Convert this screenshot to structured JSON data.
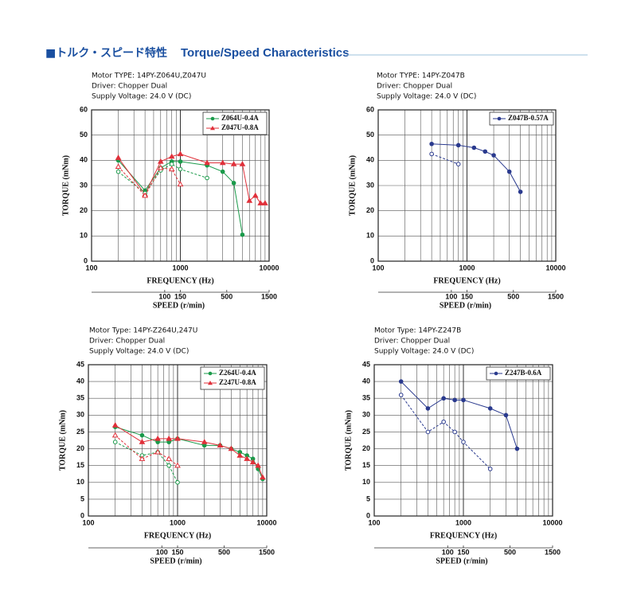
{
  "header": {
    "title_jp": "■トルク・スピード特性",
    "title_en": "Torque/Speed Characteristics"
  },
  "chart_data": [
    {
      "type": "line",
      "info": [
        "Motor TYPE: 14PY-Z064U,Z047U",
        "Driver: Chopper Dual",
        "Supply Voltage: 24.0 V (DC)"
      ],
      "xlabel": "FREQUENCY (Hz)",
      "ylabel": "TORQUE (mNm)",
      "x2label": "SPEED (r/min)",
      "xscale": "log",
      "x2scale": "log",
      "xlim": [
        100,
        10000
      ],
      "xticks": [
        100,
        1000,
        10000
      ],
      "x2lim": [
        15,
        1500
      ],
      "x2ticks": [
        100,
        150,
        500,
        1500
      ],
      "ylim": [
        0,
        60
      ],
      "yticks": [
        0,
        10,
        20,
        30,
        40,
        50,
        60
      ],
      "grid": true,
      "legend": "upper right",
      "series": [
        {
          "name": "Z064U-0.4A",
          "color": "#1a9a4a",
          "marker": "circle",
          "x": [
            200,
            400,
            600,
            800,
            1000,
            2000,
            3000,
            4000,
            5000
          ],
          "values": [
            40,
            28,
            37,
            39.5,
            39.5,
            38,
            35.5,
            31,
            10.5
          ]
        },
        {
          "name": "Z047U-0.8A",
          "color": "#e0303a",
          "marker": "triangle",
          "x": [
            200,
            400,
            600,
            800,
            1000,
            2000,
            3000,
            4000,
            5000,
            6000,
            7000,
            8000,
            9000
          ],
          "values": [
            41,
            26.5,
            39.5,
            41.5,
            42.5,
            39,
            39,
            38.5,
            38.5,
            24,
            26,
            23,
            23
          ]
        },
        {
          "color": "#1a9a4a",
          "marker": "circle",
          "dashed": true,
          "x": [
            200,
            400,
            600,
            800,
            1000,
            2000
          ],
          "values": [
            35.5,
            27,
            36,
            38.5,
            36.5,
            33
          ]
        },
        {
          "color": "#e0303a",
          "marker": "triangle",
          "dashed": true,
          "x": [
            200,
            400,
            600,
            800,
            1000
          ],
          "values": [
            37.5,
            26,
            37,
            36.5,
            30.5
          ]
        }
      ]
    },
    {
      "type": "line",
      "info": [
        "Motor TYPE: 14PY-Z047B",
        "Driver: Chopper Dual",
        "Supply Voltage: 24.0 V (DC)"
      ],
      "xlabel": "FREQUENCY (Hz)",
      "ylabel": "TORQUE (mNm)",
      "x2label": "SPEED (r/min)",
      "xscale": "log",
      "x2scale": "log",
      "xlim": [
        100,
        10000
      ],
      "xticks": [
        100,
        1000,
        10000
      ],
      "x2lim": [
        15,
        1500
      ],
      "x2ticks": [
        100,
        150,
        500,
        1500
      ],
      "ylim": [
        0,
        60
      ],
      "yticks": [
        0,
        10,
        20,
        30,
        40,
        50,
        60
      ],
      "grid": true,
      "legend": "upper right",
      "series": [
        {
          "name": "Z047B-0.57A",
          "color": "#2a3a8e",
          "marker": "circle",
          "x": [
            400,
            800,
            1200,
            1600,
            2000,
            3000,
            4000
          ],
          "values": [
            46.5,
            46,
            45,
            43.5,
            42,
            35.5,
            27.5
          ]
        },
        {
          "color": "#2a3a8e",
          "marker": "circle",
          "dashed": true,
          "x": [
            400,
            800
          ],
          "values": [
            42.5,
            38.5
          ]
        }
      ]
    },
    {
      "type": "line",
      "info": [
        "Motor Type: 14PY-Z264U,247U",
        "Driver: Chopper Dual",
        "Supply Voltage: 24.0 V (DC)"
      ],
      "xlabel": "FREQUENCY (Hz)",
      "ylabel": "TORQUE (mNm)",
      "x2label": "SPEED (r/min)",
      "xscale": "log",
      "x2scale": "log",
      "xlim": [
        100,
        10000
      ],
      "xticks": [
        100,
        1000,
        10000
      ],
      "x2lim": [
        15,
        1500
      ],
      "x2ticks": [
        100,
        150,
        500,
        1500
      ],
      "ylim": [
        0,
        45
      ],
      "yticks": [
        0,
        5,
        10,
        15,
        20,
        25,
        30,
        35,
        40,
        45
      ],
      "grid": true,
      "legend": "upper right",
      "series": [
        {
          "name": "Z264U-0.4A",
          "color": "#1a9a4a",
          "marker": "circle",
          "x": [
            200,
            400,
            600,
            800,
            1000,
            2000,
            3000,
            4000,
            5000,
            6000,
            7000,
            8000,
            9000
          ],
          "values": [
            26.5,
            24,
            22,
            22,
            23,
            21,
            21,
            20,
            19,
            18,
            17,
            14,
            11
          ]
        },
        {
          "name": "Z247U-0.8A",
          "color": "#e0303a",
          "marker": "triangle",
          "x": [
            200,
            400,
            600,
            800,
            1000,
            2000,
            3000,
            4000,
            5000,
            6000,
            7000,
            8000,
            9000
          ],
          "values": [
            27,
            22,
            23,
            23,
            23,
            22,
            21,
            20,
            18,
            17,
            16,
            15,
            11.5
          ]
        },
        {
          "color": "#1a9a4a",
          "marker": "circle",
          "dashed": true,
          "x": [
            200,
            400,
            600,
            800,
            1000
          ],
          "values": [
            22,
            18,
            19,
            15,
            10
          ]
        },
        {
          "color": "#e0303a",
          "marker": "triangle",
          "dashed": true,
          "x": [
            200,
            400,
            600,
            800,
            1000
          ],
          "values": [
            24,
            17,
            19,
            17,
            15
          ]
        }
      ]
    },
    {
      "type": "line",
      "info": [
        "Motor Type: 14PY-Z247B",
        "Driver: Chopper Dual",
        "Supply Voltage: 24.0 V (DC)"
      ],
      "xlabel": "FREQUENCY (Hz)",
      "ylabel": "TORQUE (mNm)",
      "x2label": "SPEED (r/min)",
      "xscale": "log",
      "x2scale": "log",
      "xlim": [
        100,
        10000
      ],
      "xticks": [
        100,
        1000,
        10000
      ],
      "x2lim": [
        15,
        1500
      ],
      "x2ticks": [
        100,
        150,
        500,
        1500
      ],
      "ylim": [
        0,
        45
      ],
      "yticks": [
        0,
        5,
        10,
        15,
        20,
        25,
        30,
        35,
        40,
        45
      ],
      "grid": true,
      "legend": "upper right",
      "series": [
        {
          "name": "Z247B-0.6A",
          "color": "#2a3a8e",
          "marker": "circle",
          "x": [
            200,
            400,
            600,
            800,
            1000,
            2000,
            3000,
            4000
          ],
          "values": [
            40,
            32,
            35,
            34.5,
            34.5,
            32,
            30,
            20
          ]
        },
        {
          "color": "#2a3a8e",
          "marker": "circle",
          "dashed": true,
          "x": [
            200,
            400,
            600,
            800,
            1000,
            2000
          ],
          "values": [
            36,
            25,
            28,
            25,
            22,
            14
          ]
        }
      ]
    }
  ]
}
